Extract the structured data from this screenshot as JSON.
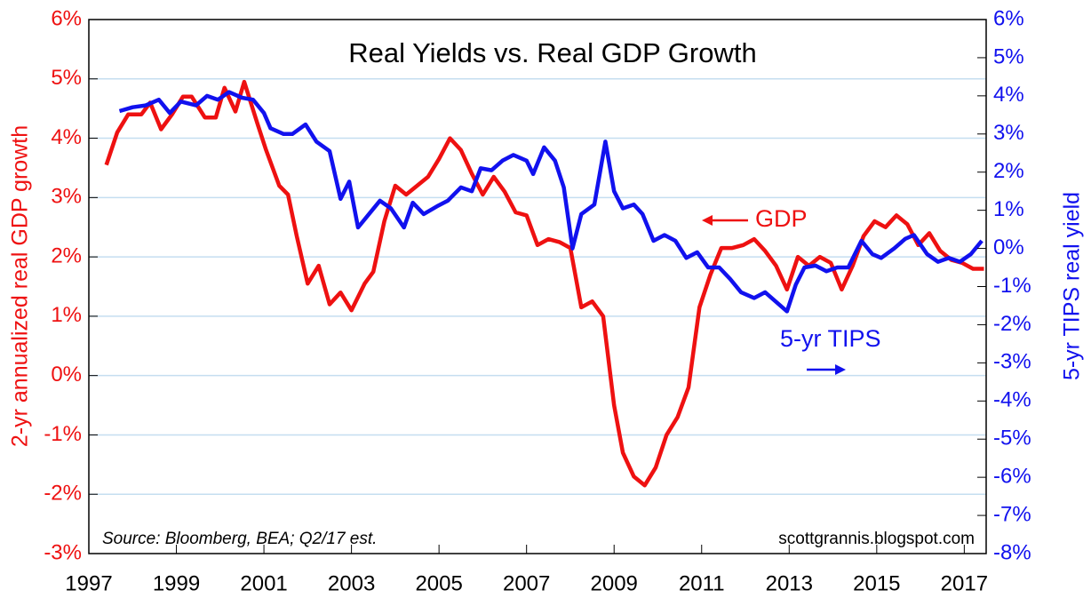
{
  "chart_data": {
    "type": "line",
    "title": "Real Yields vs. Real GDP Growth",
    "y_label": "2-yr annualized real GDP growth",
    "y2_label": "5-yr TIPS real yield",
    "annotations": [
      "Source: Bloomberg, BEA; Q2/17 est.",
      "scottgrannis.blogspot.com"
    ],
    "xlim": [
      1997,
      2017.5
    ],
    "xticks": [
      1997,
      1999,
      2001,
      2003,
      2005,
      2007,
      2009,
      2011,
      2013,
      2015,
      2017
    ],
    "ylim": [
      -3,
      6
    ],
    "yticks": [
      {
        "value": 6,
        "label": "6%"
      },
      {
        "value": 5,
        "label": "5%"
      },
      {
        "value": 4,
        "label": "4%"
      },
      {
        "value": 3,
        "label": "3%"
      },
      {
        "value": 2,
        "label": "2%"
      },
      {
        "value": 1,
        "label": "1%"
      },
      {
        "value": 0,
        "label": "0%"
      },
      {
        "value": -1,
        "label": "-1%"
      },
      {
        "value": -2,
        "label": "-2%"
      },
      {
        "value": -3,
        "label": "-3%"
      }
    ],
    "y2lim": [
      -8,
      6
    ],
    "y2ticks": [
      {
        "value": 6,
        "label": "6%"
      },
      {
        "value": 5,
        "label": "5%"
      },
      {
        "value": 4,
        "label": "4%"
      },
      {
        "value": 3,
        "label": "3%"
      },
      {
        "value": 2,
        "label": "2%"
      },
      {
        "value": 1,
        "label": "1%"
      },
      {
        "value": 0,
        "label": "0%"
      },
      {
        "value": -1,
        "label": "-1%"
      },
      {
        "value": -2,
        "label": "-2%"
      },
      {
        "value": -3,
        "label": "-3%"
      },
      {
        "value": -4,
        "label": "-4%"
      },
      {
        "value": -5,
        "label": "-5%"
      },
      {
        "value": -6,
        "label": "-6%"
      },
      {
        "value": -7,
        "label": "-7%"
      },
      {
        "value": -8,
        "label": "-8%"
      }
    ],
    "grid": true,
    "series": [
      {
        "name": "GDP",
        "color": "#ee1111",
        "axis": "y",
        "x": [
          1997.4,
          1997.65,
          1997.9,
          1998.2,
          1998.4,
          1998.65,
          1998.9,
          1999.15,
          1999.35,
          1999.65,
          1999.9,
          2000.1,
          2000.35,
          2000.55,
          2000.85,
          2001.05,
          2001.35,
          2001.55,
          2001.75,
          2002.0,
          2002.25,
          2002.5,
          2002.75,
          2003.0,
          2003.3,
          2003.5,
          2003.75,
          2004.0,
          2004.25,
          2004.5,
          2004.75,
          2005.0,
          2005.25,
          2005.5,
          2005.75,
          2006.0,
          2006.25,
          2006.5,
          2006.75,
          2007.0,
          2007.25,
          2007.5,
          2007.75,
          2008.0,
          2008.25,
          2008.5,
          2008.75,
          2009.0,
          2009.2,
          2009.45,
          2009.7,
          2009.95,
          2010.2,
          2010.45,
          2010.7,
          2010.95,
          2011.2,
          2011.45,
          2011.7,
          2011.95,
          2012.2,
          2012.45,
          2012.7,
          2012.95,
          2013.2,
          2013.45,
          2013.7,
          2013.95,
          2014.2,
          2014.45,
          2014.7,
          2014.95,
          2015.2,
          2015.45,
          2015.7,
          2015.95,
          2016.2,
          2016.45,
          2016.7,
          2016.95,
          2017.2,
          2017.45
        ],
        "values": [
          3.55,
          4.1,
          4.4,
          4.4,
          4.6,
          4.15,
          4.4,
          4.7,
          4.7,
          4.35,
          4.35,
          4.85,
          4.45,
          4.95,
          4.25,
          3.8,
          3.2,
          3.05,
          2.35,
          1.55,
          1.85,
          1.2,
          1.4,
          1.1,
          1.55,
          1.75,
          2.6,
          3.2,
          3.05,
          3.2,
          3.35,
          3.65,
          4.0,
          3.8,
          3.4,
          3.05,
          3.35,
          3.1,
          2.75,
          2.7,
          2.2,
          2.3,
          2.25,
          2.15,
          1.15,
          1.25,
          1.0,
          -0.5,
          -1.3,
          -1.7,
          -1.85,
          -1.55,
          -1.0,
          -0.7,
          -0.2,
          1.15,
          1.7,
          2.15,
          2.15,
          2.2,
          2.3,
          2.1,
          1.85,
          1.45,
          2.0,
          1.85,
          2.0,
          1.9,
          1.45,
          1.85,
          2.35,
          2.6,
          2.5,
          2.7,
          2.55,
          2.2,
          2.4,
          2.1,
          1.95,
          1.9,
          1.8,
          1.8
        ]
      },
      {
        "name": "5-yr TIPS",
        "color": "#1111ee",
        "axis": "y2",
        "x": [
          1997.7,
          1998.0,
          1998.3,
          1998.6,
          1998.85,
          1999.1,
          1999.45,
          1999.7,
          1999.95,
          2000.2,
          2000.5,
          2000.75,
          2001.0,
          2001.15,
          2001.45,
          2001.65,
          2001.95,
          2002.2,
          2002.5,
          2002.75,
          2002.95,
          2003.15,
          2003.4,
          2003.65,
          2003.9,
          2004.2,
          2004.4,
          2004.65,
          2004.95,
          2005.2,
          2005.5,
          2005.75,
          2005.95,
          2006.2,
          2006.45,
          2006.7,
          2007.0,
          2007.15,
          2007.4,
          2007.65,
          2007.85,
          2008.05,
          2008.25,
          2008.55,
          2008.8,
          2009.0,
          2009.2,
          2009.45,
          2009.65,
          2009.9,
          2010.15,
          2010.4,
          2010.65,
          2010.9,
          2011.15,
          2011.4,
          2011.65,
          2011.9,
          2012.2,
          2012.45,
          2012.7,
          2012.95,
          2013.15,
          2013.35,
          2013.6,
          2013.85,
          2014.1,
          2014.35,
          2014.65,
          2014.9,
          2015.1,
          2015.4,
          2015.65,
          2015.85,
          2016.15,
          2016.4,
          2016.65,
          2016.9,
          2017.15,
          2017.4
        ],
        "values": [
          3.6,
          3.7,
          3.75,
          3.9,
          3.55,
          3.85,
          3.75,
          4.0,
          3.9,
          4.1,
          3.95,
          3.9,
          3.55,
          3.15,
          3.0,
          3.0,
          3.25,
          2.8,
          2.55,
          1.3,
          1.75,
          0.55,
          0.9,
          1.25,
          1.05,
          0.55,
          1.2,
          0.9,
          1.1,
          1.25,
          1.6,
          1.5,
          2.1,
          2.05,
          2.3,
          2.45,
          2.3,
          1.95,
          2.65,
          2.3,
          1.6,
          0.0,
          0.9,
          1.15,
          2.8,
          1.5,
          1.05,
          1.15,
          0.9,
          0.2,
          0.35,
          0.2,
          -0.25,
          -0.1,
          -0.5,
          -0.5,
          -0.8,
          -1.15,
          -1.3,
          -1.15,
          -1.4,
          -1.65,
          -0.95,
          -0.5,
          -0.45,
          -0.6,
          -0.5,
          -0.5,
          0.2,
          -0.15,
          -0.25,
          0.0,
          0.25,
          0.35,
          -0.15,
          -0.35,
          -0.25,
          -0.35,
          -0.15,
          0.2
        ]
      }
    ]
  }
}
